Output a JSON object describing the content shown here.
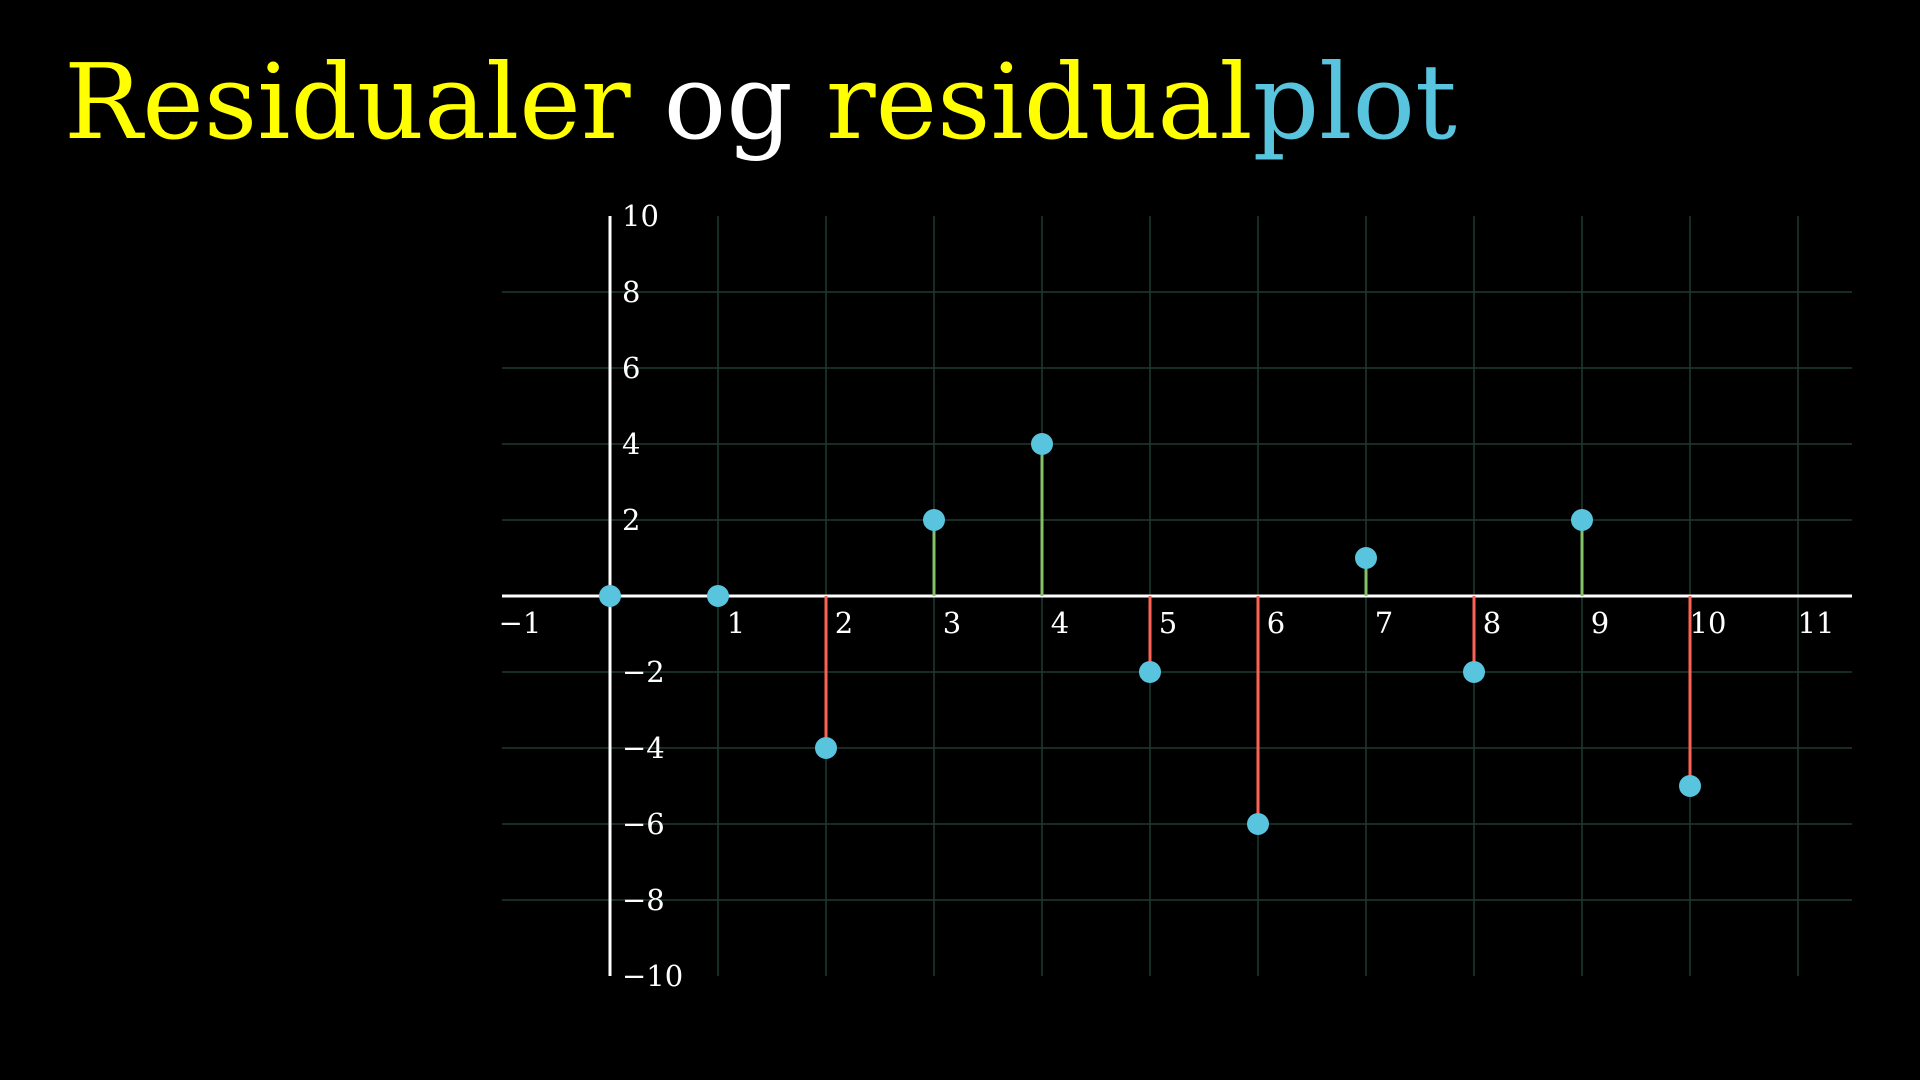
{
  "title": {
    "part1": "Residualer",
    "part2": " og ",
    "part3": "residual",
    "part4": "plot",
    "colors": {
      "part1": "#ffff00",
      "part2": "#ffffff",
      "part3": "#ffff00",
      "part4": "#58c4dd"
    }
  },
  "chart_data": {
    "type": "scatter",
    "title": "",
    "xlabel": "",
    "ylabel": "",
    "xlim": [
      -1,
      11
    ],
    "ylim": [
      -10,
      10
    ],
    "x_ticks": [
      "−1",
      "1",
      "2",
      "3",
      "4",
      "5",
      "6",
      "7",
      "8",
      "9",
      "10",
      "11"
    ],
    "y_ticks": [
      "10",
      "8",
      "6",
      "4",
      "2",
      "−2",
      "−4",
      "−6",
      "−8",
      "−10"
    ],
    "grid": true,
    "points": [
      {
        "x": 0,
        "y": 0
      },
      {
        "x": 1,
        "y": 0
      },
      {
        "x": 2,
        "y": -4
      },
      {
        "x": 3,
        "y": 2
      },
      {
        "x": 4,
        "y": 4
      },
      {
        "x": 5,
        "y": -2
      },
      {
        "x": 6,
        "y": -6
      },
      {
        "x": 7,
        "y": 1
      },
      {
        "x": 8,
        "y": -2
      },
      {
        "x": 9,
        "y": 2
      },
      {
        "x": 10,
        "y": -5
      }
    ],
    "colors": {
      "point": "#58c4dd",
      "positive_stem": "#83c167",
      "negative_stem": "#fc6255",
      "axis": "#ffffff",
      "grid": "#1f3a33"
    }
  }
}
